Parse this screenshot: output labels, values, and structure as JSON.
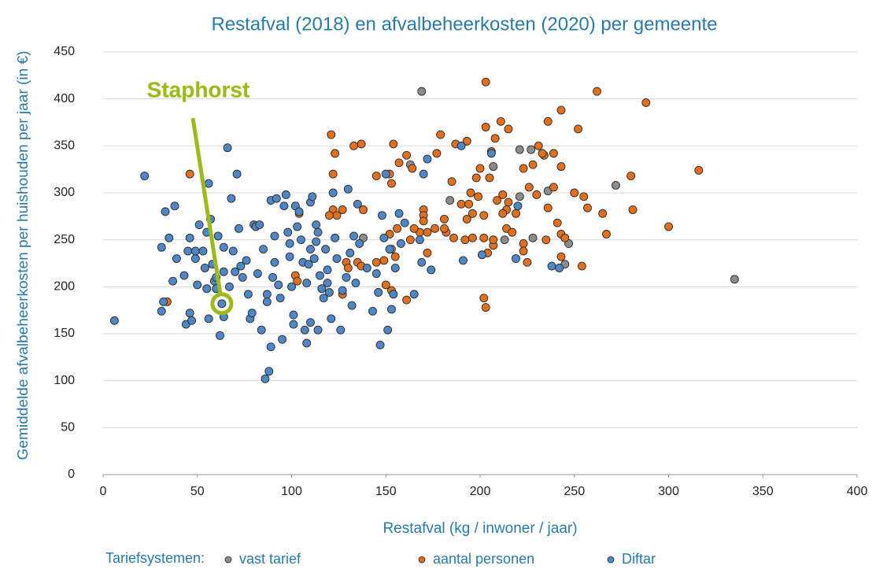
{
  "chart_data": {
    "type": "scatter",
    "title": "Restafval (2018) en afvalbeheerkosten (2020) per gemeente",
    "x_label": "Restafval (kg / inwoner / jaar)",
    "y_label": "Gemiddelde afvalbeheerkosten per huishouden per jaar (in €)",
    "legend_title": "Tariefsystemen:",
    "legend_position": "bottom",
    "grid": true,
    "xlim": [
      0,
      400
    ],
    "xticks": [
      0,
      50,
      100,
      150,
      200,
      250,
      300,
      350,
      400
    ],
    "ylim": [
      0,
      450
    ],
    "yticks": [
      0,
      50,
      100,
      150,
      200,
      250,
      300,
      350,
      400,
      450
    ],
    "annotations": [
      {
        "text": "Staphorst",
        "x": 63,
        "y": 182,
        "color": "#9bbb1c"
      }
    ],
    "series": [
      {
        "name": "vast tarief",
        "color": "#8c8c8c",
        "x": [
          169,
          184,
          163,
          138,
          153,
          221,
          227,
          236,
          272,
          247,
          335,
          228,
          221,
          207,
          245,
          213
        ],
        "y": [
          408,
          292,
          330,
          252,
          240,
          346,
          346,
          302,
          308,
          246,
          208,
          252,
          296,
          328,
          224,
          250
        ]
      },
      {
        "name": "aantal personen",
        "color": "#e0701e",
        "x": [
          203,
          262,
          288,
          243,
          211,
          236,
          203,
          215,
          252,
          121,
          179,
          208,
          193,
          133,
          154,
          137,
          231,
          234,
          187,
          206,
          161,
          177,
          123,
          157,
          164,
          200,
          233,
          239,
          223,
          228,
          243,
          205,
          198,
          153,
          152,
          145,
          122,
          316,
          280,
          226,
          250,
          239,
          185,
          212,
          195,
          199,
          209,
          215,
          230,
          219,
          214,
          255,
          257,
          236,
          265,
          281,
          267,
          300,
          241,
          202,
          193,
          181,
          170,
          170,
          170,
          172,
          168,
          165,
          156,
          152,
          122,
          127,
          124,
          120,
          104,
          138,
          182,
          186,
          192,
          196,
          202,
          207,
          214,
          217,
          223,
          235,
          243,
          245,
          254,
          243,
          223,
          225,
          204,
          207,
          163,
          129,
          135,
          145,
          149,
          130,
          137,
          150,
          153,
          127,
          102,
          103,
          34,
          46,
          161,
          202,
          203,
          172,
          155,
          212,
          196,
          190,
          194,
          176,
          181
        ],
        "y": [
          418,
          408,
          396,
          388,
          376,
          376,
          370,
          368,
          368,
          362,
          362,
          358,
          355,
          350,
          352,
          352,
          350,
          340,
          352,
          344,
          340,
          342,
          342,
          332,
          326,
          326,
          342,
          342,
          326,
          330,
          328,
          316,
          316,
          310,
          320,
          318,
          320,
          324,
          318,
          306,
          300,
          306,
          312,
          298,
          300,
          296,
          292,
          290,
          298,
          278,
          282,
          296,
          284,
          284,
          278,
          282,
          256,
          264,
          268,
          276,
          272,
          272,
          282,
          276,
          270,
          258,
          258,
          262,
          262,
          256,
          282,
          282,
          276,
          276,
          278,
          282,
          258,
          252,
          250,
          252,
          252,
          244,
          262,
          258,
          246,
          250,
          256,
          252,
          222,
          232,
          238,
          226,
          236,
          250,
          250,
          226,
          226,
          226,
          228,
          220,
          222,
          202,
          196,
          192,
          212,
          206,
          184,
          320,
          186,
          188,
          178,
          236,
          232,
          278,
          278,
          288,
          288,
          262,
          262
        ]
      },
      {
        "name": "Diftar",
        "color": "#4f86c6",
        "x": [
          6,
          22,
          31,
          32,
          31,
          33,
          35,
          37,
          38,
          39,
          44,
          46,
          45,
          46,
          47,
          49,
          50,
          49,
          51,
          53,
          54,
          55,
          55,
          56,
          56,
          57,
          58,
          59,
          60,
          61,
          62,
          63,
          64,
          66,
          64,
          68,
          69,
          70,
          71,
          72,
          73,
          74,
          76,
          77,
          78,
          79,
          80,
          81,
          82,
          83,
          84,
          85,
          86,
          87,
          87,
          88,
          89,
          89,
          90,
          91,
          91,
          92,
          93,
          94,
          95,
          96,
          97,
          98,
          99,
          99,
          100,
          101,
          101,
          102,
          103,
          104,
          105,
          106,
          107,
          108,
          108,
          109,
          110,
          110,
          111,
          112,
          113,
          113,
          114,
          114,
          115,
          116,
          117,
          118,
          119,
          119,
          120,
          121,
          122,
          123,
          124,
          126,
          127,
          129,
          130,
          131,
          132,
          133,
          134,
          135,
          136,
          140,
          143,
          145,
          146,
          147,
          148,
          149,
          150,
          151,
          152,
          153,
          154,
          155,
          157,
          158,
          160,
          165,
          168,
          169,
          170,
          172,
          174,
          190,
          191,
          201,
          206,
          219,
          220,
          238,
          242,
          64,
          43,
          67,
          60,
          110
        ],
        "y": [
          164,
          318,
          242,
          184,
          174,
          280,
          252,
          206,
          286,
          230,
          160,
          172,
          238,
          252,
          164,
          230,
          202,
          238,
          266,
          238,
          220,
          198,
          258,
          166,
          310,
          272,
          224,
          206,
          198,
          254,
          148,
          182,
          216,
          348,
          168,
          294,
          238,
          216,
          320,
          262,
          222,
          210,
          228,
          192,
          166,
          172,
          266,
          264,
          214,
          266,
          154,
          240,
          102,
          192,
          184,
          110,
          136,
          292,
          210,
          226,
          254,
          294,
          202,
          188,
          144,
          286,
          298,
          258,
          246,
          232,
          200,
          170,
          160,
          286,
          264,
          280,
          250,
          226,
          154,
          140,
          204,
          224,
          162,
          290,
          296,
          230,
          248,
          266,
          258,
          154,
          212,
          198,
          188,
          240,
          218,
          204,
          194,
          166,
          300,
          252,
          230,
          154,
          196,
          210,
          304,
          236,
          180,
          254,
          204,
          288,
          246,
          220,
          174,
          214,
          194,
          138,
          276,
          252,
          320,
          154,
          240,
          176,
          192,
          220,
          278,
          246,
          268,
          192,
          250,
          226,
          320,
          336,
          218,
          350,
          228,
          234,
          342,
          230,
          286,
          222,
          220,
          242,
          212,
          200,
          210,
          240
        ]
      }
    ]
  }
}
